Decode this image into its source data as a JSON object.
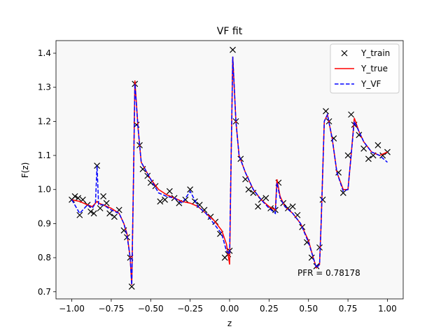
{
  "chart_data": {
    "type": "line",
    "title": "VF fit",
    "xlabel": "z",
    "ylabel": "F(z)",
    "xlim": [
      -1.1,
      1.1
    ],
    "ylim": [
      0.679,
      1.437
    ],
    "xticks": [
      {
        "value": -1,
        "label": "−1.00"
      },
      {
        "value": -0.75,
        "label": "−0.75"
      },
      {
        "value": -0.5,
        "label": "−0.50"
      },
      {
        "value": -0.25,
        "label": "−0.25"
      },
      {
        "value": 0,
        "label": "0.00"
      },
      {
        "value": 0.25,
        "label": "0.25"
      },
      {
        "value": 0.5,
        "label": "0.50"
      },
      {
        "value": 0.75,
        "label": "0.75"
      },
      {
        "value": 1,
        "label": "1.00"
      }
    ],
    "yticks": [
      0.7,
      0.8,
      0.9,
      {
        "value": 1,
        "label": "1.0"
      },
      1.1,
      1.2,
      1.3,
      1.4
    ],
    "legend": "upper right",
    "annotation": "PFR = 0.78178",
    "series": [
      {
        "name": "Y_train",
        "color": "#000000",
        "style": "marker-x",
        "x": [
          -1.0,
          -0.98,
          -0.96,
          -0.95,
          -0.93,
          -0.9,
          -0.88,
          -0.86,
          -0.84,
          -0.82,
          -0.8,
          -0.78,
          -0.76,
          -0.73,
          -0.7,
          -0.67,
          -0.65,
          -0.63,
          -0.62,
          -0.6,
          -0.59,
          -0.57,
          -0.55,
          -0.52,
          -0.5,
          -0.47,
          -0.44,
          -0.41,
          -0.38,
          -0.35,
          -0.32,
          -0.28,
          -0.25,
          -0.22,
          -0.19,
          -0.16,
          -0.12,
          -0.09,
          -0.06,
          -0.03,
          -0.01,
          0.0,
          0.02,
          0.04,
          0.07,
          0.1,
          0.12,
          0.15,
          0.18,
          0.2,
          0.23,
          0.26,
          0.29,
          0.31,
          0.34,
          0.37,
          0.4,
          0.43,
          0.46,
          0.49,
          0.52,
          0.55,
          0.57,
          0.59,
          0.61,
          0.63,
          0.66,
          0.69,
          0.72,
          0.75,
          0.77,
          0.79,
          0.82,
          0.85,
          0.88,
          0.91,
          0.94,
          0.97,
          1.0
        ],
        "values": [
          0.97,
          0.98,
          0.975,
          0.925,
          0.97,
          0.955,
          0.935,
          0.93,
          1.07,
          0.945,
          0.98,
          0.96,
          0.93,
          0.92,
          0.94,
          0.88,
          0.86,
          0.8,
          0.715,
          1.31,
          1.19,
          1.13,
          1.06,
          1.04,
          1.02,
          1.01,
          0.965,
          0.97,
          0.995,
          0.975,
          0.96,
          0.97,
          1.0,
          0.965,
          0.955,
          0.94,
          0.92,
          0.905,
          0.87,
          0.8,
          0.81,
          0.82,
          1.41,
          1.2,
          1.09,
          1.03,
          1.0,
          0.99,
          0.95,
          0.97,
          0.975,
          0.945,
          0.94,
          1.02,
          0.96,
          0.945,
          0.95,
          0.925,
          0.89,
          0.845,
          0.8,
          0.775,
          0.83,
          0.97,
          1.23,
          1.2,
          1.15,
          1.05,
          0.99,
          1.1,
          1.22,
          1.19,
          1.16,
          1.12,
          1.09,
          1.1,
          1.13,
          1.1,
          1.11
        ]
      },
      {
        "name": "Y_true",
        "color": "#ff0000",
        "style": "solid",
        "x": [
          -1,
          -0.95,
          -0.9,
          -0.87,
          -0.85,
          -0.84,
          -0.83,
          -0.8,
          -0.75,
          -0.7,
          -0.67,
          -0.65,
          -0.63,
          -0.62,
          -0.61,
          -0.6,
          -0.58,
          -0.56,
          -0.5,
          -0.45,
          -0.4,
          -0.35,
          -0.3,
          -0.25,
          -0.2,
          -0.15,
          -0.1,
          -0.05,
          -0.02,
          0,
          0.01,
          0.02,
          0.04,
          0.06,
          0.1,
          0.15,
          0.2,
          0.25,
          0.29,
          0.3,
          0.32,
          0.35,
          0.4,
          0.45,
          0.5,
          0.53,
          0.55,
          0.57,
          0.58,
          0.6,
          0.62,
          0.65,
          0.68,
          0.72,
          0.75,
          0.77,
          0.79,
          0.82,
          0.85,
          0.9,
          0.95,
          1.0
        ],
        "values": [
          0.97,
          0.965,
          0.955,
          0.95,
          0.96,
          0.965,
          0.96,
          0.955,
          0.945,
          0.93,
          0.9,
          0.87,
          0.8,
          0.72,
          1.0,
          1.32,
          1.18,
          1.08,
          1.03,
          1.0,
          0.985,
          0.975,
          0.965,
          0.96,
          0.95,
          0.93,
          0.91,
          0.88,
          0.84,
          0.78,
          1.1,
          1.39,
          1.2,
          1.1,
          1.05,
          1.0,
          0.97,
          0.95,
          0.94,
          1.03,
          0.98,
          0.95,
          0.93,
          0.9,
          0.85,
          0.8,
          0.77,
          0.78,
          0.9,
          1.2,
          1.22,
          1.15,
          1.05,
          1.0,
          1.0,
          1.1,
          1.21,
          1.17,
          1.14,
          1.11,
          1.1,
          1.11
        ]
      },
      {
        "name": "Y_VF",
        "color": "#0000ff",
        "style": "dashed",
        "x": [
          -1,
          -0.95,
          -0.9,
          -0.87,
          -0.85,
          -0.84,
          -0.83,
          -0.8,
          -0.75,
          -0.7,
          -0.67,
          -0.65,
          -0.63,
          -0.62,
          -0.61,
          -0.6,
          -0.58,
          -0.56,
          -0.5,
          -0.45,
          -0.4,
          -0.35,
          -0.3,
          -0.25,
          -0.2,
          -0.15,
          -0.1,
          -0.05,
          -0.02,
          0,
          0.01,
          0.02,
          0.04,
          0.06,
          0.1,
          0.15,
          0.2,
          0.25,
          0.29,
          0.3,
          0.32,
          0.35,
          0.4,
          0.45,
          0.5,
          0.53,
          0.55,
          0.57,
          0.58,
          0.6,
          0.62,
          0.65,
          0.68,
          0.72,
          0.75,
          0.77,
          0.79,
          0.82,
          0.85,
          0.9,
          0.95,
          1.0
        ],
        "values": [
          0.97,
          0.93,
          0.955,
          0.945,
          0.96,
          1.07,
          0.955,
          0.955,
          0.94,
          0.93,
          0.9,
          0.865,
          0.8,
          0.72,
          1.0,
          1.31,
          1.18,
          1.08,
          1.03,
          0.99,
          0.98,
          0.975,
          0.96,
          0.995,
          0.95,
          0.93,
          0.9,
          0.87,
          0.82,
          0.81,
          1.1,
          1.39,
          1.2,
          1.1,
          1.05,
          1.0,
          0.97,
          0.945,
          0.93,
          1.02,
          0.975,
          0.95,
          0.93,
          0.9,
          0.845,
          0.8,
          0.77,
          0.78,
          0.9,
          1.2,
          1.22,
          1.15,
          1.05,
          0.995,
          1.0,
          1.1,
          1.2,
          1.17,
          1.14,
          1.11,
          1.1,
          1.08
        ]
      }
    ]
  }
}
